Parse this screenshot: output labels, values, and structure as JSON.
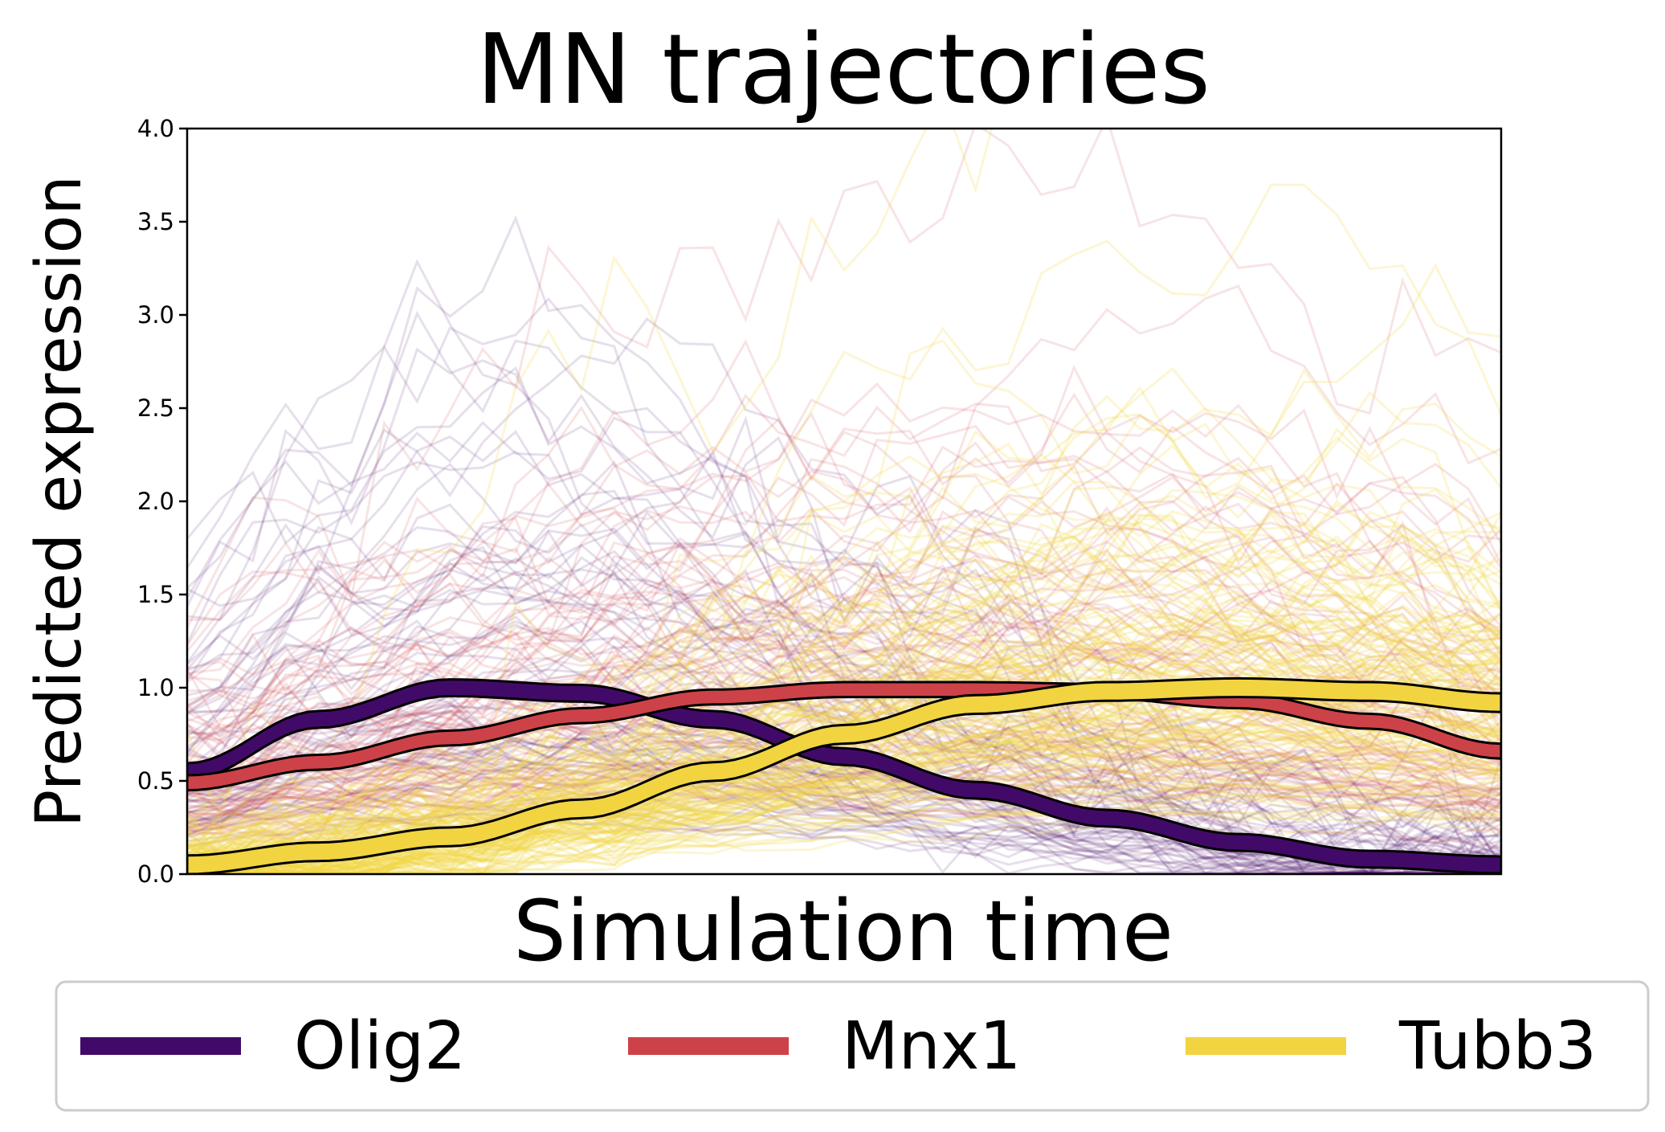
{
  "chart_data": {
    "type": "line",
    "title": "MN trajectories",
    "xlabel": "Simulation time",
    "ylabel": "Predicted expression",
    "xticks_shown": false,
    "ylim": [
      0,
      4
    ],
    "yticks": [
      "0.0",
      "0.5",
      "1.0",
      "1.5",
      "2.0",
      "2.5",
      "3.0",
      "3.5",
      "4.0"
    ],
    "grid": false,
    "legend_position": "bottom-center",
    "x": [
      0,
      0.1,
      0.2,
      0.3,
      0.4,
      0.5,
      0.6,
      0.7,
      0.8,
      0.9,
      1.0
    ],
    "series": [
      {
        "name": "Olig2",
        "color": "#420a68",
        "mean_values": [
          0.55,
          0.83,
          1.0,
          0.97,
          0.83,
          0.63,
          0.45,
          0.3,
          0.17,
          0.08,
          0.05
        ],
        "band_width": 0.09
      },
      {
        "name": "Mnx1",
        "color": "#cc4248",
        "mean_values": [
          0.49,
          0.6,
          0.73,
          0.85,
          0.95,
          0.99,
          0.99,
          0.98,
          0.93,
          0.82,
          0.66
        ],
        "band_width": 0.08
      },
      {
        "name": "Tubb3",
        "color": "#f1d440",
        "mean_values": [
          0.05,
          0.12,
          0.2,
          0.35,
          0.55,
          0.75,
          0.91,
          0.98,
          1.0,
          0.98,
          0.92
        ],
        "band_width": 0.1
      }
    ],
    "background_trajectories": "many faint simulated trajectories per gene (Olig2 purple, Mnx1 red, Tubb3 yellow)"
  }
}
